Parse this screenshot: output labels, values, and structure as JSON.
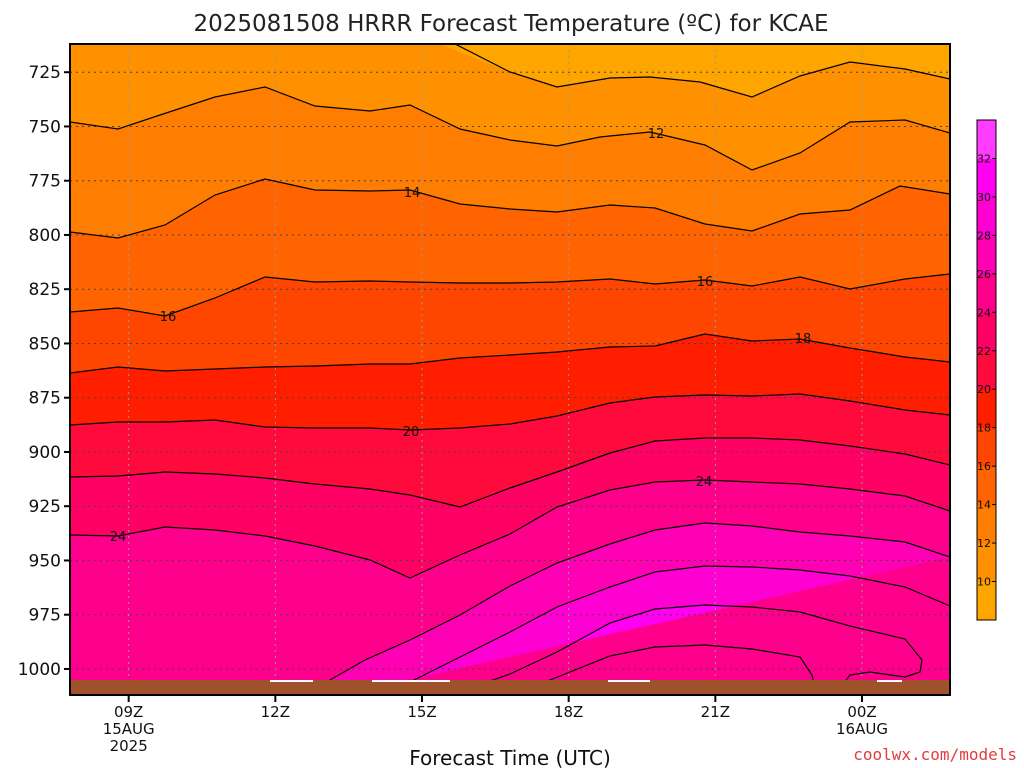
{
  "chart_data": {
    "type": "contour",
    "title": "2025081508 HRRR Forecast Temperature (ºC) for KCAE",
    "xlabel": "Forecast Time (UTC)",
    "ylabel": "",
    "credit": "coolwx.com/models",
    "x_range_hours_from_09Z": [
      -1.2,
      16.8
    ],
    "y_range_hPa": [
      712,
      1012
    ],
    "y_ticks": [
      "725",
      "750",
      "775",
      "800",
      "825",
      "850",
      "875",
      "900",
      "925",
      "950",
      "975",
      "1000"
    ],
    "x_ticks": [
      {
        "lines": [
          "09Z",
          "15AUG",
          "2025"
        ]
      },
      {
        "lines": [
          "12Z"
        ]
      },
      {
        "lines": [
          "15Z"
        ]
      },
      {
        "lines": [
          "18Z"
        ]
      },
      {
        "lines": [
          "21Z"
        ]
      },
      {
        "lines": [
          "00Z",
          "16AUG"
        ]
      }
    ],
    "colorbar_ticks": [
      "10",
      "12",
      "14",
      "16",
      "18",
      "20",
      "22",
      "24",
      "26",
      "28",
      "30",
      "32"
    ],
    "contour_levels": [
      12,
      14,
      16,
      18,
      20,
      22,
      24,
      26,
      28,
      30,
      32
    ],
    "contour_labels": [
      "12",
      "14",
      "16",
      "16",
      "18",
      "20",
      "24",
      "24"
    ],
    "colors": {
      "8": "#ffa500",
      "10": "#ff9100",
      "12": "#ff7d00",
      "14": "#ff6400",
      "16": "#ff4600",
      "18": "#ff1e00",
      "20": "#ff0a3c",
      "22": "#ff0064",
      "24": "#ff008c",
      "26": "#ff00b4",
      "28": "#ff00d2",
      "30": "#ff00f0",
      "32": "#ff3cff",
      "ground": "#a0522d"
    }
  }
}
